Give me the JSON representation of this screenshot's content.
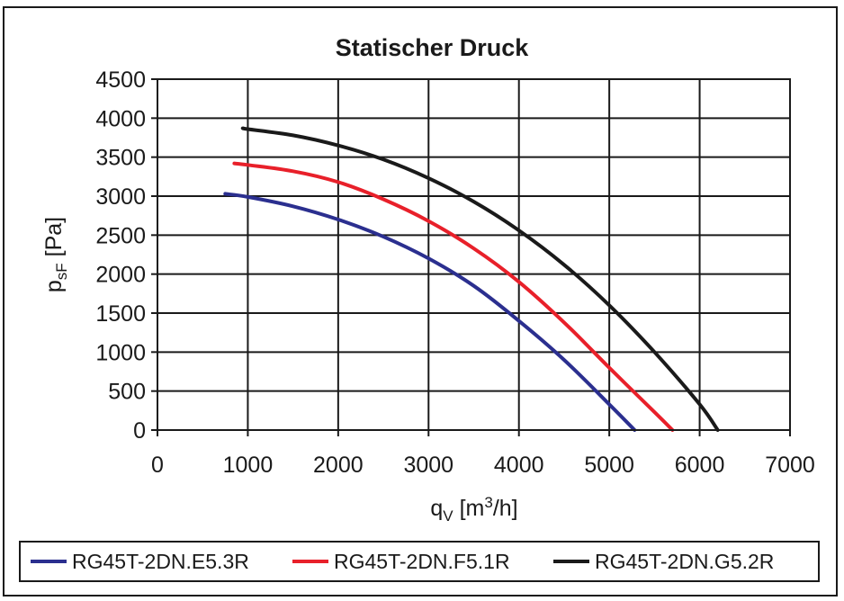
{
  "chart_data": {
    "type": "line",
    "title": "Statischer Druck",
    "xlabel": {
      "main": "q",
      "sub": "V",
      "unit_pre": " [m",
      "sup": "3",
      "unit_post": "/h]"
    },
    "ylabel": {
      "main": "p",
      "sub": "sF",
      "unit": " [Pa]"
    },
    "xlim": [
      0,
      7000
    ],
    "ylim": [
      0,
      4500
    ],
    "xticks": [
      0,
      1000,
      2000,
      3000,
      4000,
      5000,
      6000,
      7000
    ],
    "yticks": [
      0,
      500,
      1000,
      1500,
      2000,
      2500,
      3000,
      3500,
      4000,
      4500
    ],
    "grid": true,
    "legend_position": "bottom",
    "series": [
      {
        "name": "RG45T-2DN.E5.3R",
        "color": "#2b2f8f",
        "x": [
          750,
          1000,
          1500,
          2000,
          2500,
          3000,
          3500,
          4000,
          4500,
          5000,
          5280
        ],
        "y": [
          3030,
          2990,
          2870,
          2700,
          2480,
          2200,
          1850,
          1400,
          900,
          330,
          0
        ]
      },
      {
        "name": "RG45T-2DN.F5.1R",
        "color": "#e8202a",
        "x": [
          850,
          1000,
          1500,
          2000,
          2500,
          3000,
          3500,
          4000,
          4500,
          5000,
          5500,
          5700
        ],
        "y": [
          3420,
          3400,
          3320,
          3180,
          2960,
          2680,
          2330,
          1900,
          1380,
          800,
          230,
          0
        ]
      },
      {
        "name": "RG45T-2DN.G5.2R",
        "color": "#1a1a1a",
        "x": [
          950,
          1000,
          1500,
          2000,
          2500,
          3000,
          3500,
          4000,
          4500,
          5000,
          5500,
          6000,
          6200
        ],
        "y": [
          3870,
          3860,
          3780,
          3650,
          3470,
          3230,
          2930,
          2560,
          2120,
          1600,
          1000,
          330,
          0
        ]
      }
    ]
  }
}
